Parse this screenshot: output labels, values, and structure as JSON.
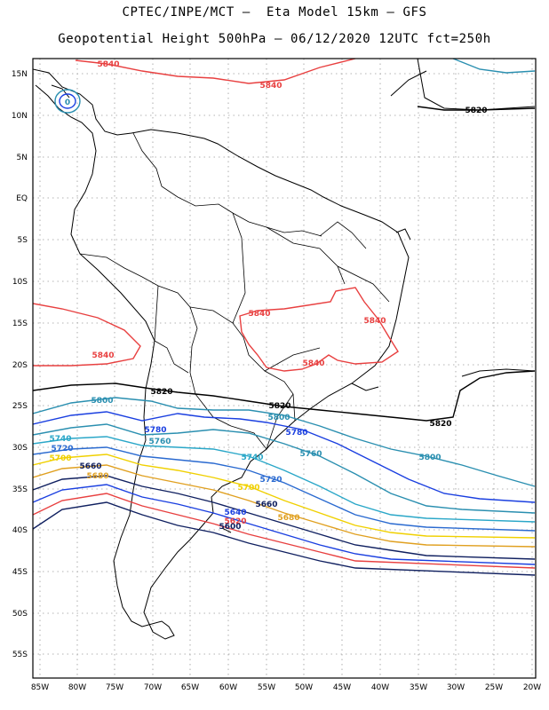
{
  "header": {
    "line1": "CPTEC/INPE/MCT –  Eta Model 15km – GFS",
    "line2": "Geopotential Height 500hPa – 06/12/2020 12UTC fct=250h"
  },
  "axes": {
    "lon_ticks": [
      "85W",
      "80W",
      "75W",
      "70W",
      "65W",
      "60W",
      "55W",
      "50W",
      "45W",
      "40W",
      "35W",
      "30W",
      "25W",
      "20W"
    ],
    "lat_ticks": [
      "15N",
      "10N",
      "5N",
      "EQ",
      "5S",
      "10S",
      "15S",
      "20S",
      "25S",
      "30S",
      "35S",
      "40S",
      "45S",
      "50S",
      "55S"
    ]
  },
  "contour_labels": [
    {
      "text": "5840",
      "color": "#e84040"
    },
    {
      "text": "5840",
      "color": "#e84040"
    },
    {
      "text": "5840",
      "color": "#e84040"
    },
    {
      "text": "5840",
      "color": "#e84040"
    },
    {
      "text": "5840",
      "color": "#e84040"
    },
    {
      "text": "5840",
      "color": "#e84040"
    },
    {
      "text": "5820",
      "color": "#000000"
    },
    {
      "text": "5820",
      "color": "#000000"
    },
    {
      "text": "5820",
      "color": "#000000"
    },
    {
      "text": "5820",
      "color": "#000000"
    },
    {
      "text": "5800",
      "color": "#2a8fb0"
    },
    {
      "text": "5800",
      "color": "#2a8fb0"
    },
    {
      "text": "5800",
      "color": "#2a8fb0"
    },
    {
      "text": "5780",
      "color": "#1a3fe0"
    },
    {
      "text": "5780",
      "color": "#1a3fe0"
    },
    {
      "text": "5780",
      "color": "#1a3fe0"
    },
    {
      "text": "5760",
      "color": "#2a8fb0"
    },
    {
      "text": "5760",
      "color": "#2a8fb0"
    },
    {
      "text": "5740",
      "color": "#2aa7c8"
    },
    {
      "text": "5740",
      "color": "#2aa7c8"
    },
    {
      "text": "5720",
      "color": "#2a6ad0"
    },
    {
      "text": "5720",
      "color": "#2a6ad0"
    },
    {
      "text": "5700",
      "color": "#f0d000"
    },
    {
      "text": "5700",
      "color": "#f0d000"
    },
    {
      "text": "5680",
      "color": "#e0a020"
    },
    {
      "text": "5680",
      "color": "#e0a020"
    },
    {
      "text": "5660",
      "color": "#102060"
    },
    {
      "text": "5660",
      "color": "#102060"
    },
    {
      "text": "5640",
      "color": "#1a3fe0"
    },
    {
      "text": "5620",
      "color": "#e84040"
    },
    {
      "text": "5600",
      "color": "#102060"
    },
    {
      "text": "0",
      "color": "#2a8fb0"
    }
  ]
}
